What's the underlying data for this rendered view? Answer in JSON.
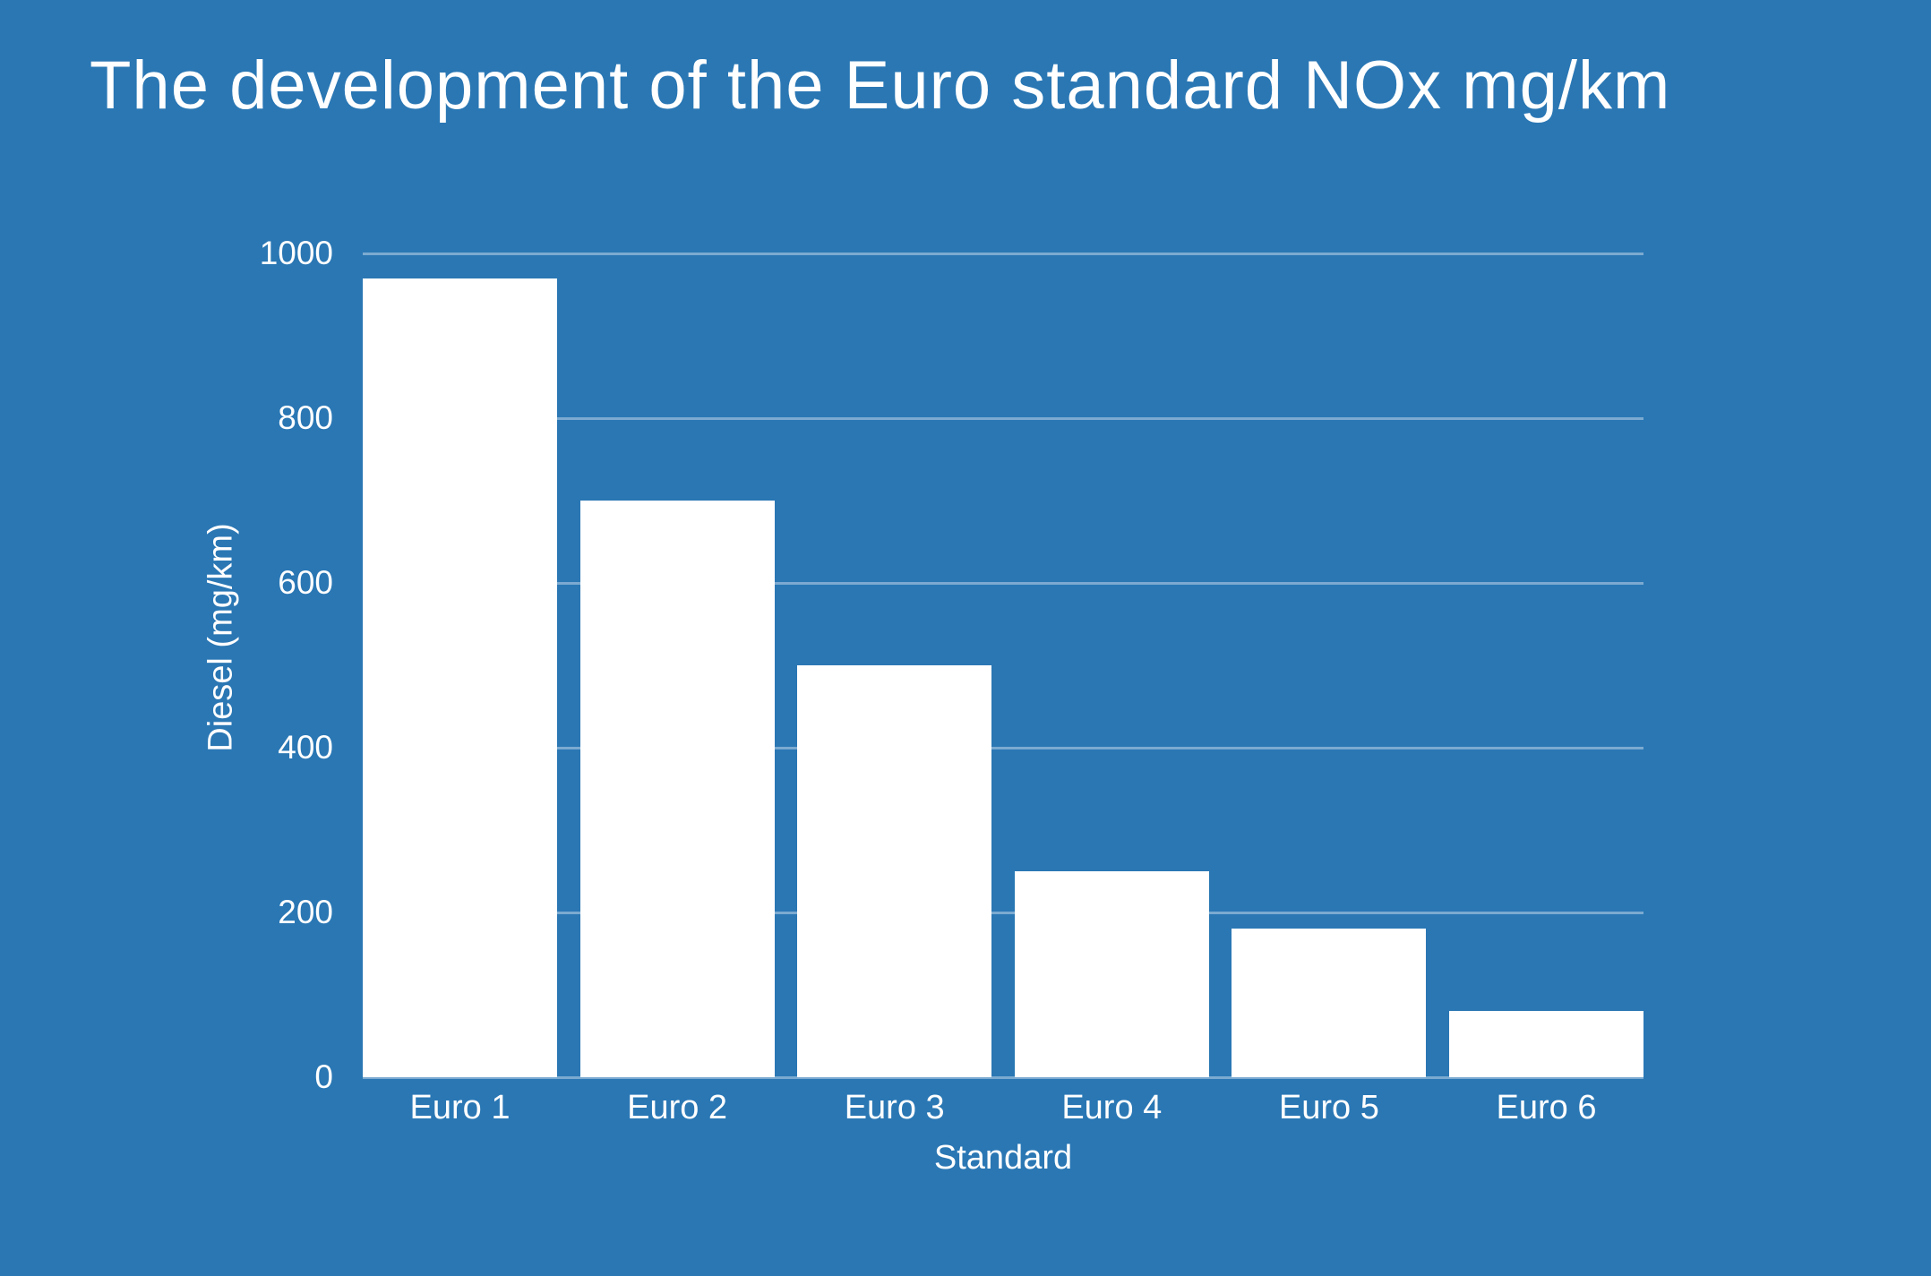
{
  "chart_data": {
    "type": "bar",
    "title": "The development of the Euro standard NOx mg/km",
    "xlabel": "Standard",
    "ylabel": "Diesel (mg/km)",
    "categories": [
      "Euro 1",
      "Euro 2",
      "Euro 3",
      "Euro 4",
      "Euro 5",
      "Euro 6"
    ],
    "values": [
      970,
      700,
      500,
      250,
      180,
      80
    ],
    "ylim": [
      0,
      1000
    ],
    "yticks": [
      0,
      200,
      400,
      600,
      800,
      1000
    ],
    "grid": "horizontal-only, behind bars, includes baseline",
    "legend": "none",
    "colors": {
      "background": "#2A77B4",
      "bar": "#FFFFFF",
      "gridline": "rgba(255,255,255,0.38)",
      "text": "#FFFFFF"
    }
  }
}
